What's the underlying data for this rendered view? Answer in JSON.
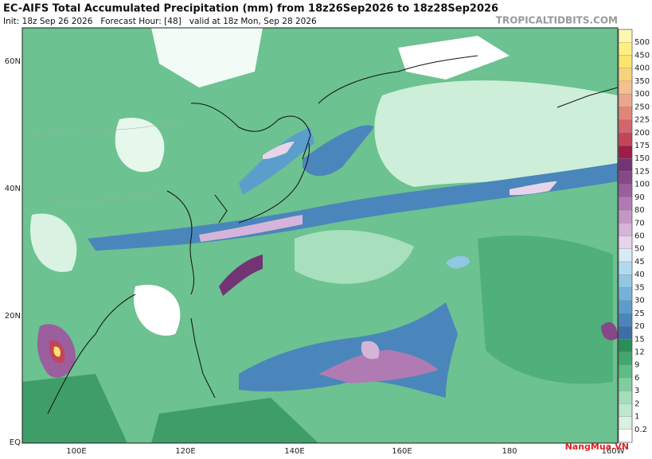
{
  "header": {
    "title": "EC-AIFS Total Accumulated Precipitation (mm) from 18z26Sep2026 to 18z28Sep2026",
    "subtitle": "Init: 18z Sep 26 2026   Forecast Hour: [48]   valid at 18z Mon, Sep 28 2026",
    "source": "TROPICALTIDBITS.COM"
  },
  "map": {
    "lat_labels": [
      "60N",
      "40N",
      "20N",
      "EQ"
    ],
    "lon_labels": [
      "100E",
      "120E",
      "140E",
      "160E",
      "180",
      "160W"
    ]
  },
  "colorbar": {
    "levels": [
      0.2,
      1,
      2,
      3,
      6,
      9,
      12,
      15,
      20,
      25,
      30,
      35,
      40,
      45,
      50,
      60,
      70,
      80,
      90,
      100,
      125,
      150,
      175,
      200,
      225,
      250,
      300,
      350,
      400,
      450,
      500
    ],
    "colors": [
      "#ffffff",
      "#d7f2df",
      "#bde8cc",
      "#a3deba",
      "#7ecf9e",
      "#5dbd85",
      "#3fa86c",
      "#2a8f57",
      "#3c6fa8",
      "#4a86bb",
      "#5b9ecb",
      "#74b3d8",
      "#90c7e3",
      "#b0dbee",
      "#d8eaf5",
      "#e8d4ea",
      "#d6b4d9",
      "#c497c6",
      "#b07bb3",
      "#9b5f9e",
      "#87488a",
      "#733475",
      "#a01c48",
      "#c4445a",
      "#d4656a",
      "#e0857a",
      "#eba58c",
      "#f3c08e",
      "#f7d37c",
      "#fae46d",
      "#fdf080",
      "#fff7b0"
    ]
  },
  "watermark": "NangMua.VN"
}
